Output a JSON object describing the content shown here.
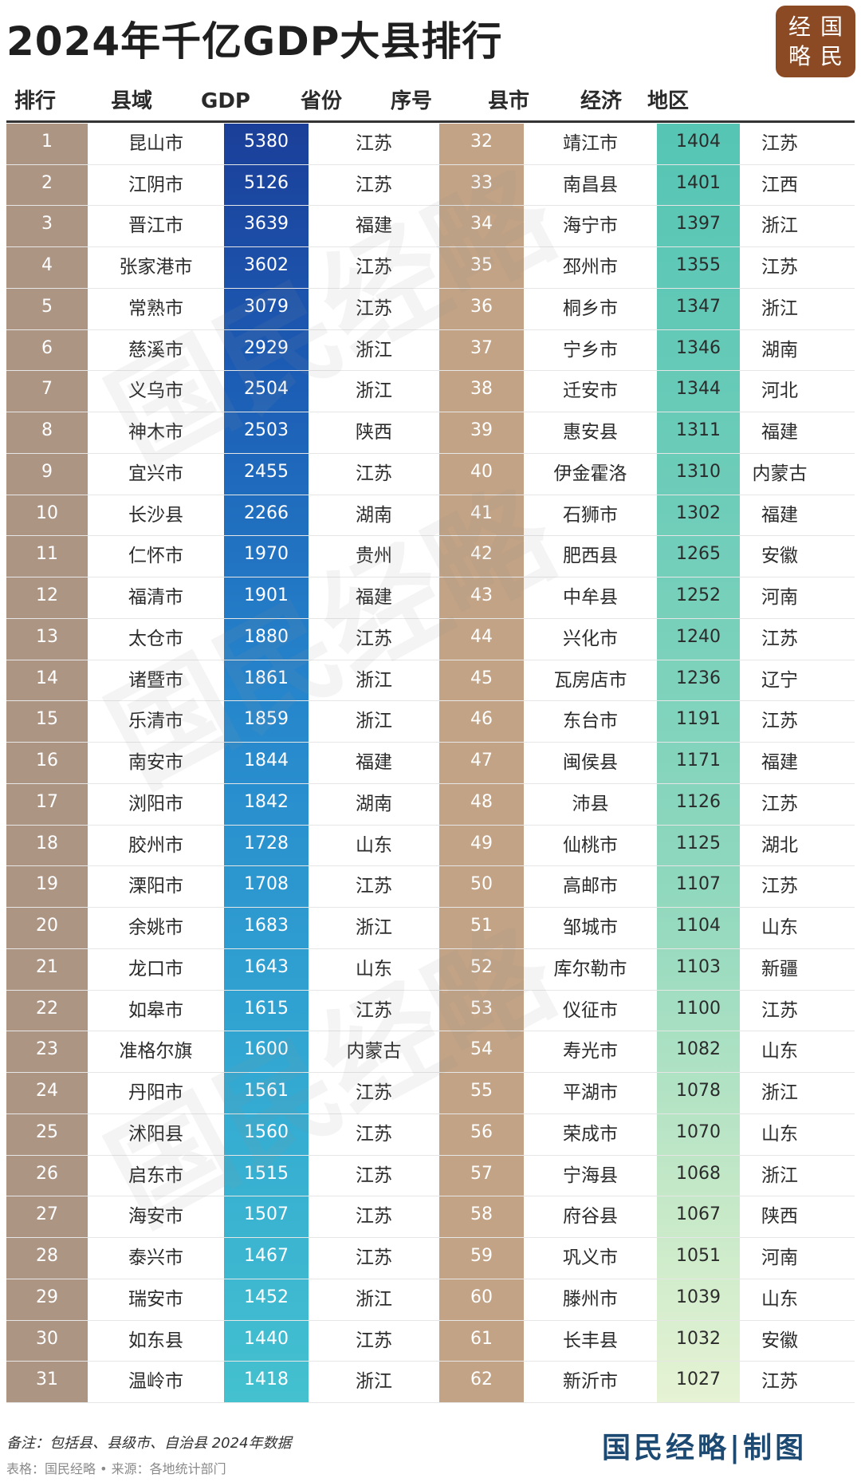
{
  "title": "2024年千亿GDP大县排行",
  "logo": [
    "经",
    "国",
    "略",
    "民"
  ],
  "headers": [
    "排行",
    "县域",
    "GDP",
    "省份",
    "序号",
    "县市",
    "经济",
    "地区"
  ],
  "rows": [
    {
      "rank": "1",
      "county": "昆山市",
      "gdp": "5380",
      "prov": "江苏",
      "seq": "32",
      "city": "靖江市",
      "eco": "1404",
      "area": "江苏"
    },
    {
      "rank": "2",
      "county": "江阴市",
      "gdp": "5126",
      "prov": "江苏",
      "seq": "33",
      "city": "南昌县",
      "eco": "1401",
      "area": "江西"
    },
    {
      "rank": "3",
      "county": "晋江市",
      "gdp": "3639",
      "prov": "福建",
      "seq": "34",
      "city": "海宁市",
      "eco": "1397",
      "area": "浙江"
    },
    {
      "rank": "4",
      "county": "张家港市",
      "gdp": "3602",
      "prov": "江苏",
      "seq": "35",
      "city": "邳州市",
      "eco": "1355",
      "area": "江苏"
    },
    {
      "rank": "5",
      "county": "常熟市",
      "gdp": "3079",
      "prov": "江苏",
      "seq": "36",
      "city": "桐乡市",
      "eco": "1347",
      "area": "浙江"
    },
    {
      "rank": "6",
      "county": "慈溪市",
      "gdp": "2929",
      "prov": "浙江",
      "seq": "37",
      "city": "宁乡市",
      "eco": "1346",
      "area": "湖南"
    },
    {
      "rank": "7",
      "county": "义乌市",
      "gdp": "2504",
      "prov": "浙江",
      "seq": "38",
      "city": "迁安市",
      "eco": "1344",
      "area": "河北"
    },
    {
      "rank": "8",
      "county": "神木市",
      "gdp": "2503",
      "prov": "陕西",
      "seq": "39",
      "city": "惠安县",
      "eco": "1311",
      "area": "福建"
    },
    {
      "rank": "9",
      "county": "宜兴市",
      "gdp": "2455",
      "prov": "江苏",
      "seq": "40",
      "city": "伊金霍洛",
      "eco": "1310",
      "area": "内蒙古"
    },
    {
      "rank": "10",
      "county": "长沙县",
      "gdp": "2266",
      "prov": "湖南",
      "seq": "41",
      "city": "石狮市",
      "eco": "1302",
      "area": "福建"
    },
    {
      "rank": "11",
      "county": "仁怀市",
      "gdp": "1970",
      "prov": "贵州",
      "seq": "42",
      "city": "肥西县",
      "eco": "1265",
      "area": "安徽"
    },
    {
      "rank": "12",
      "county": "福清市",
      "gdp": "1901",
      "prov": "福建",
      "seq": "43",
      "city": "中牟县",
      "eco": "1252",
      "area": "河南"
    },
    {
      "rank": "13",
      "county": "太仓市",
      "gdp": "1880",
      "prov": "江苏",
      "seq": "44",
      "city": "兴化市",
      "eco": "1240",
      "area": "江苏"
    },
    {
      "rank": "14",
      "county": "诸暨市",
      "gdp": "1861",
      "prov": "浙江",
      "seq": "45",
      "city": "瓦房店市",
      "eco": "1236",
      "area": "辽宁"
    },
    {
      "rank": "15",
      "county": "乐清市",
      "gdp": "1859",
      "prov": "浙江",
      "seq": "46",
      "city": "东台市",
      "eco": "1191",
      "area": "江苏"
    },
    {
      "rank": "16",
      "county": "南安市",
      "gdp": "1844",
      "prov": "福建",
      "seq": "47",
      "city": "闽侯县",
      "eco": "1171",
      "area": "福建"
    },
    {
      "rank": "17",
      "county": "浏阳市",
      "gdp": "1842",
      "prov": "湖南",
      "seq": "48",
      "city": "沛县",
      "eco": "1126",
      "area": "江苏"
    },
    {
      "rank": "18",
      "county": "胶州市",
      "gdp": "1728",
      "prov": "山东",
      "seq": "49",
      "city": "仙桃市",
      "eco": "1125",
      "area": "湖北"
    },
    {
      "rank": "19",
      "county": "溧阳市",
      "gdp": "1708",
      "prov": "江苏",
      "seq": "50",
      "city": "高邮市",
      "eco": "1107",
      "area": "江苏"
    },
    {
      "rank": "20",
      "county": "余姚市",
      "gdp": "1683",
      "prov": "浙江",
      "seq": "51",
      "city": "邹城市",
      "eco": "1104",
      "area": "山东"
    },
    {
      "rank": "21",
      "county": "龙口市",
      "gdp": "1643",
      "prov": "山东",
      "seq": "52",
      "city": "库尔勒市",
      "eco": "1103",
      "area": "新疆"
    },
    {
      "rank": "22",
      "county": "如皋市",
      "gdp": "1615",
      "prov": "江苏",
      "seq": "53",
      "city": "仪征市",
      "eco": "1100",
      "area": "江苏"
    },
    {
      "rank": "23",
      "county": "准格尔旗",
      "gdp": "1600",
      "prov": "内蒙古",
      "seq": "54",
      "city": "寿光市",
      "eco": "1082",
      "area": "山东"
    },
    {
      "rank": "24",
      "county": "丹阳市",
      "gdp": "1561",
      "prov": "江苏",
      "seq": "55",
      "city": "平湖市",
      "eco": "1078",
      "area": "浙江"
    },
    {
      "rank": "25",
      "county": "沭阳县",
      "gdp": "1560",
      "prov": "江苏",
      "seq": "56",
      "city": "荣成市",
      "eco": "1070",
      "area": "山东"
    },
    {
      "rank": "26",
      "county": "启东市",
      "gdp": "1515",
      "prov": "江苏",
      "seq": "57",
      "city": "宁海县",
      "eco": "1068",
      "area": "浙江"
    },
    {
      "rank": "27",
      "county": "海安市",
      "gdp": "1507",
      "prov": "江苏",
      "seq": "58",
      "city": "府谷县",
      "eco": "1067",
      "area": "陕西"
    },
    {
      "rank": "28",
      "county": "泰兴市",
      "gdp": "1467",
      "prov": "江苏",
      "seq": "59",
      "city": "巩义市",
      "eco": "1051",
      "area": "河南"
    },
    {
      "rank": "29",
      "county": "瑞安市",
      "gdp": "1452",
      "prov": "浙江",
      "seq": "60",
      "city": "滕州市",
      "eco": "1039",
      "area": "山东"
    },
    {
      "rank": "30",
      "county": "如东县",
      "gdp": "1440",
      "prov": "江苏",
      "seq": "61",
      "city": "长丰县",
      "eco": "1032",
      "area": "安徽"
    },
    {
      "rank": "31",
      "county": "温岭市",
      "gdp": "1418",
      "prov": "浙江",
      "seq": "62",
      "city": "新沂市",
      "eco": "1027",
      "area": "江苏"
    }
  ],
  "note": "备注：包括县、县级市、自治县 2024年数据",
  "source": "表格：国民经略 • 来源：各地统计部门",
  "brand": "国民经略|制图",
  "colors": {
    "rank_col": "#ad9584",
    "gdp_col_top": "#1b3f99",
    "gdp_col_bottom": "#44c1cf",
    "seq_col": "#c2a385",
    "eco_col_top": "#56c5b4",
    "eco_col_bottom": "#e6f3d4",
    "logo_bg": "#8b4a24",
    "brand_text": "#1d4a73"
  }
}
